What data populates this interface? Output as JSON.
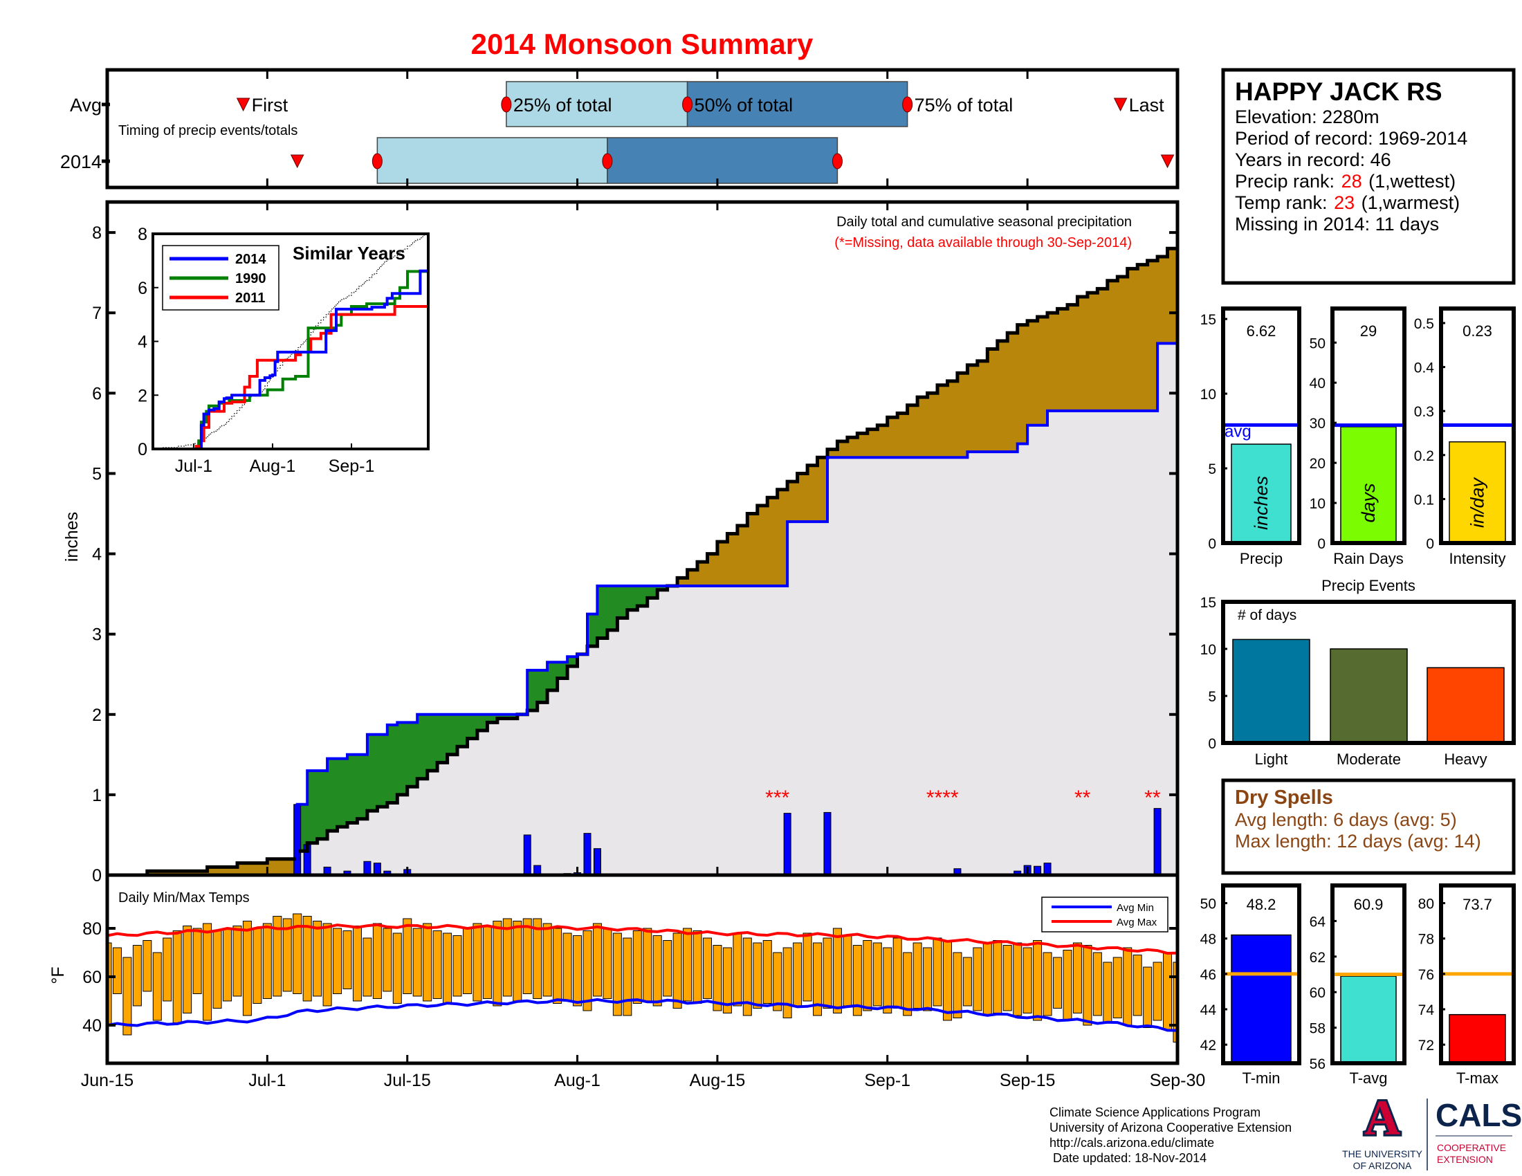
{
  "title": "2014 Monsoon Summary",
  "station": {
    "name": "HAPPY JACK RS",
    "elevation_label": "Elevation: 2280m",
    "period_label": "Period of record: 1969-2014",
    "years_label": "Years in record: 46",
    "precip_rank_prefix": "Precip rank: ",
    "precip_rank": "28",
    "precip_rank_suffix": " (1,wettest)",
    "temp_rank_prefix": "Temp rank: ",
    "temp_rank": "23",
    "temp_rank_suffix": " (1,warmest)",
    "missing_label": "Missing in 2014: 11 days"
  },
  "dry_spells": {
    "title": "Dry Spells",
    "avg_length": "Avg length: 6 days (avg: 5)",
    "max_length": "Max length: 12 days (avg: 14)"
  },
  "footer": {
    "line1": "Climate Science Applications Program",
    "line2": "University of Arizona Cooperative Extension",
    "line3": "http://cals.arizona.edu/climate",
    "line4": " Date updated: 18-Nov-2014"
  },
  "logo": {
    "ua_letter": "A",
    "ua_line1": "THE UNIVERSITY",
    "ua_line2": "OF ARIZONA",
    "cals": "CALS",
    "coop_line1": "COOPERATIVE",
    "coop_line2": "EXTENSION"
  },
  "colors": {
    "title": "#FF0000",
    "below_avg_fill": "#B8860B",
    "above_avg_fill": "#228B22",
    "base_fill": "#E8E6E8",
    "precip_bar": "#0000FF",
    "temp_bar": "#FFA500",
    "avg_min": "#0000FF",
    "avg_max": "#FF0000"
  },
  "chart_data": [
    {
      "id": "timing",
      "type": "timeline",
      "x_unit": "days since Jun-15",
      "rows": [
        "Avg",
        "2014"
      ],
      "note": "Timing of precip events/totals",
      "labels": {
        "first": "First",
        "last": "Last",
        "p25": "25% of total",
        "p50": "50% of total",
        "p75": "75% of total"
      },
      "avg": {
        "first": 13.6,
        "p25": 39.9,
        "p50": 58,
        "p75": 80,
        "last": 101.3
      },
      "y2014": {
        "first": 19,
        "p25": 27,
        "p50": 50,
        "p75": 73,
        "last": 106
      }
    },
    {
      "id": "cumulative",
      "type": "area",
      "title": "Daily total and cumulative seasonal precipitation",
      "subtitle": "(*=Missing, data available through 30-Sep-2014)",
      "ylabel": "inches",
      "ylim": [
        0,
        8.38
      ],
      "yticks": [
        0,
        1,
        2,
        3,
        4,
        5,
        6,
        7,
        8
      ],
      "xlim": [
        0,
        107
      ],
      "x_ticks": [
        {
          "day": 0,
          "label": "Jun-15"
        },
        {
          "day": 16,
          "label": "Jul-1"
        },
        {
          "day": 30,
          "label": "Jul-15"
        },
        {
          "day": 47,
          "label": "Aug-1"
        },
        {
          "day": 61,
          "label": "Aug-15"
        },
        {
          "day": 78,
          "label": "Sep-1"
        },
        {
          "day": 92,
          "label": "Sep-15"
        },
        {
          "day": 107,
          "label": "Sep-30"
        }
      ],
      "avg_cumulative": [
        [
          0,
          0
        ],
        [
          10,
          0.08
        ],
        [
          18.5,
          0.23
        ],
        [
          20,
          0.4
        ],
        [
          28,
          0.9
        ],
        [
          38,
          1.9
        ],
        [
          42.4,
          2.05
        ],
        [
          47.8,
          2.85
        ],
        [
          52.7,
          3.35
        ],
        [
          57.6,
          3.75
        ],
        [
          67.3,
          4.85
        ],
        [
          72.5,
          5.35
        ],
        [
          77,
          5.6
        ],
        [
          86.8,
          6.4
        ],
        [
          91.6,
          6.9
        ],
        [
          96.6,
          7.15
        ],
        [
          101.5,
          7.5
        ],
        [
          107,
          7.85
        ]
      ],
      "cumulative_2014_steps": [
        [
          19,
          0.88
        ],
        [
          20,
          1.3
        ],
        [
          22,
          1.45
        ],
        [
          24,
          1.5
        ],
        [
          26,
          1.75
        ],
        [
          28,
          1.87
        ],
        [
          29,
          1.9
        ],
        [
          31,
          2.0
        ],
        [
          42,
          2.55
        ],
        [
          44,
          2.65
        ],
        [
          46,
          2.72
        ],
        [
          47,
          2.75
        ],
        [
          48,
          3.25
        ],
        [
          49,
          3.6
        ],
        [
          68,
          4.4
        ],
        [
          72,
          5.2
        ],
        [
          86,
          5.27
        ],
        [
          91,
          5.37
        ],
        [
          92,
          5.6
        ],
        [
          94,
          5.78
        ],
        [
          105,
          6.62
        ]
      ],
      "daily_precip": [
        [
          19,
          0.88
        ],
        [
          20,
          0.38
        ],
        [
          22,
          0.1
        ],
        [
          24,
          0.05
        ],
        [
          26,
          0.17
        ],
        [
          27,
          0.15
        ],
        [
          28,
          0.05
        ],
        [
          30,
          0.07
        ],
        [
          42,
          0.5
        ],
        [
          43,
          0.12
        ],
        [
          46,
          0.02
        ],
        [
          47,
          0.03
        ],
        [
          48,
          0.52
        ],
        [
          49,
          0.33
        ],
        [
          68,
          0.77
        ],
        [
          72,
          0.78
        ],
        [
          85,
          0.08
        ],
        [
          91,
          0.05
        ],
        [
          92,
          0.12
        ],
        [
          93,
          0.11
        ],
        [
          94,
          0.15
        ],
        [
          98,
          0.01
        ],
        [
          105,
          0.83
        ]
      ],
      "missing_marks": [
        {
          "day": 67,
          "label": "***"
        },
        {
          "day": 83.5,
          "label": "****"
        },
        {
          "day": 97.5,
          "label": "**"
        },
        {
          "day": 104.5,
          "label": "**"
        }
      ]
    },
    {
      "id": "similar_years",
      "type": "line",
      "title": "Similar Years",
      "ylim": [
        0,
        8
      ],
      "yticks": [
        0,
        2,
        4,
        6,
        8
      ],
      "x_ticks": [
        {
          "day": 16,
          "label": "Jul-1"
        },
        {
          "day": 47,
          "label": "Aug-1"
        },
        {
          "day": 78,
          "label": "Sep-1"
        }
      ],
      "series": [
        {
          "name": "2014",
          "color": "#0000FF",
          "steps": [
            [
              19,
              0.88
            ],
            [
              20,
              1.3
            ],
            [
              22,
              1.45
            ],
            [
              24,
              1.5
            ],
            [
              26,
              1.75
            ],
            [
              28,
              1.87
            ],
            [
              29,
              1.9
            ],
            [
              31,
              2.0
            ],
            [
              42,
              2.55
            ],
            [
              44,
              2.65
            ],
            [
              46,
              2.72
            ],
            [
              47,
              2.75
            ],
            [
              48,
              3.25
            ],
            [
              49,
              3.6
            ],
            [
              68,
              4.4
            ],
            [
              72,
              5.2
            ],
            [
              86,
              5.27
            ],
            [
              91,
              5.37
            ],
            [
              92,
              5.6
            ],
            [
              94,
              5.78
            ],
            [
              105,
              6.62
            ]
          ]
        },
        {
          "name": "1990",
          "color": "#008000",
          "steps": [
            [
              18,
              0.3
            ],
            [
              19,
              1.0
            ],
            [
              21,
              1.4
            ],
            [
              22,
              1.6
            ],
            [
              26,
              1.7
            ],
            [
              30,
              1.8
            ],
            [
              38,
              2.0
            ],
            [
              45,
              2.2
            ],
            [
              51,
              2.6
            ],
            [
              56,
              2.7
            ],
            [
              61,
              4.5
            ],
            [
              72,
              4.6
            ],
            [
              74,
              5.0
            ],
            [
              78,
              5.3
            ],
            [
              84,
              5.4
            ],
            [
              95,
              5.6
            ],
            [
              97,
              6.0
            ],
            [
              100,
              6.6
            ]
          ]
        },
        {
          "name": "2011",
          "color": "#FF0000",
          "steps": [
            [
              17,
              0.1
            ],
            [
              19,
              0.3
            ],
            [
              20,
              0.8
            ],
            [
              22,
              1.4
            ],
            [
              28,
              1.7
            ],
            [
              31,
              1.75
            ],
            [
              36,
              2.3
            ],
            [
              38,
              2.7
            ],
            [
              41,
              3.3
            ],
            [
              56,
              3.5
            ],
            [
              58,
              3.6
            ],
            [
              62,
              4.1
            ],
            [
              66,
              4.3
            ],
            [
              70,
              5.0
            ],
            [
              92,
              5.0
            ],
            [
              95,
              5.3
            ]
          ]
        }
      ]
    },
    {
      "id": "temps",
      "type": "bar",
      "title": "Daily Min/Max Temps",
      "ylabel": "°F",
      "ylim": [
        24.3,
        102
      ],
      "yticks": [
        40,
        60,
        80
      ],
      "legend": [
        "Avg Min",
        "Avg Max"
      ],
      "tmax": [
        74,
        72,
        68,
        73,
        75,
        70,
        76,
        79,
        81,
        80,
        82,
        79,
        80,
        81,
        83,
        80,
        82,
        85,
        84,
        86,
        85,
        83,
        82,
        80,
        79,
        81,
        76,
        82,
        80,
        78,
        84,
        80,
        82,
        79,
        78,
        77,
        80,
        82,
        81,
        83,
        84,
        83,
        84,
        84,
        82,
        80,
        78,
        77,
        79,
        82,
        80,
        78,
        76,
        79,
        80,
        77,
        75,
        78,
        80,
        79,
        76,
        73,
        72,
        78,
        76,
        74,
        75,
        70,
        72,
        74,
        78,
        74,
        76,
        80,
        77,
        73,
        75,
        74,
        72,
        76,
        70,
        74,
        72,
        76,
        75,
        70,
        68,
        72,
        74,
        75,
        73,
        74,
        72,
        75,
        70,
        68,
        71,
        74,
        73,
        70,
        66,
        68,
        72,
        69,
        64,
        66,
        70,
        66
      ],
      "tmin": [
        40,
        53,
        36,
        48,
        54,
        42,
        50,
        41,
        45,
        53,
        42,
        47,
        50,
        52,
        44,
        49,
        51,
        52,
        54,
        53,
        50,
        52,
        48,
        53,
        55,
        50,
        52,
        51,
        54,
        49,
        53,
        52,
        50,
        51,
        49,
        52,
        53,
        50,
        51,
        48,
        52,
        50,
        53,
        51,
        52,
        49,
        50,
        48,
        46,
        52,
        51,
        44,
        44,
        49,
        50,
        48,
        52,
        47,
        50,
        49,
        51,
        46,
        45,
        48,
        44,
        47,
        49,
        46,
        43,
        48,
        50,
        44,
        47,
        45,
        48,
        44,
        46,
        48,
        45,
        47,
        44,
        47,
        46,
        48,
        42,
        43,
        48,
        46,
        44,
        45,
        46,
        44,
        45,
        42,
        44,
        47,
        42,
        45,
        40,
        44,
        41,
        43,
        40,
        44,
        39,
        42,
        38,
        33
      ],
      "avg_max": [
        [
          0,
          77
        ],
        [
          15,
          80
        ],
        [
          25,
          81
        ],
        [
          50,
          80
        ],
        [
          60,
          78
        ],
        [
          75,
          77
        ],
        [
          85,
          75
        ],
        [
          95,
          73
        ],
        [
          107,
          70
        ]
      ],
      "avg_min": [
        [
          0,
          40
        ],
        [
          15,
          42
        ],
        [
          20,
          46
        ],
        [
          30,
          48
        ],
        [
          45,
          50
        ],
        [
          55,
          50
        ],
        [
          70,
          48
        ],
        [
          80,
          47
        ],
        [
          90,
          44
        ],
        [
          100,
          41
        ],
        [
          107,
          38
        ]
      ]
    },
    {
      "id": "precip_total",
      "type": "bar",
      "value": 6.62,
      "value_label": "6.62",
      "avg": 7.9,
      "avg_label": "avg",
      "unit": "inches",
      "xlabel": "Precip",
      "ylim": [
        0,
        15.7
      ],
      "yticks": [
        0,
        5,
        10,
        15
      ],
      "color": "#40E0D0"
    },
    {
      "id": "rain_days",
      "type": "bar",
      "value": 29,
      "value_label": "29",
      "avg": 29.4,
      "unit": "days",
      "xlabel": "Rain Days",
      "ylim": [
        0,
        58.5
      ],
      "yticks": [
        0,
        10,
        20,
        30,
        40,
        50
      ],
      "color": "#7CFC00"
    },
    {
      "id": "intensity",
      "type": "bar",
      "value": 0.23,
      "value_label": "0.23",
      "avg": 0.268,
      "unit": "in/day",
      "xlabel": "Intensity",
      "ylim": [
        0,
        0.533
      ],
      "yticks": [
        0,
        0.1,
        0.2,
        0.3,
        0.4,
        0.5
      ],
      "color": "#FFD700"
    },
    {
      "id": "precip_events",
      "type": "bar",
      "title": "Precip Events",
      "ylabel": "# of days",
      "categories": [
        "Light",
        "Moderate",
        "Heavy"
      ],
      "values": [
        11,
        10,
        8
      ],
      "colors": [
        "#00779F",
        "#556B2F",
        "#FF4500"
      ],
      "ylim": [
        0,
        15
      ],
      "yticks": [
        0,
        5,
        10,
        15
      ]
    },
    {
      "id": "tmin",
      "type": "bar",
      "value": 48.2,
      "value_label": "48.2",
      "avg": 46,
      "xlabel": "T-min",
      "ylim": [
        40.95,
        51
      ],
      "yticks": [
        42,
        44,
        46,
        48,
        50
      ],
      "color": "#0000FF"
    },
    {
      "id": "tavg",
      "type": "bar",
      "value": 60.9,
      "value_label": "60.9",
      "avg": 61,
      "xlabel": "T-avg",
      "ylim": [
        56,
        66
      ],
      "yticks": [
        56,
        58,
        60,
        62,
        64
      ],
      "color": "#40E0D0"
    },
    {
      "id": "tmax",
      "type": "bar",
      "value": 73.7,
      "value_label": "73.7",
      "avg": 76,
      "xlabel": "T-max",
      "ylim": [
        70.95,
        81
      ],
      "yticks": [
        72,
        74,
        76,
        78,
        80
      ],
      "color": "#FF0000"
    }
  ]
}
